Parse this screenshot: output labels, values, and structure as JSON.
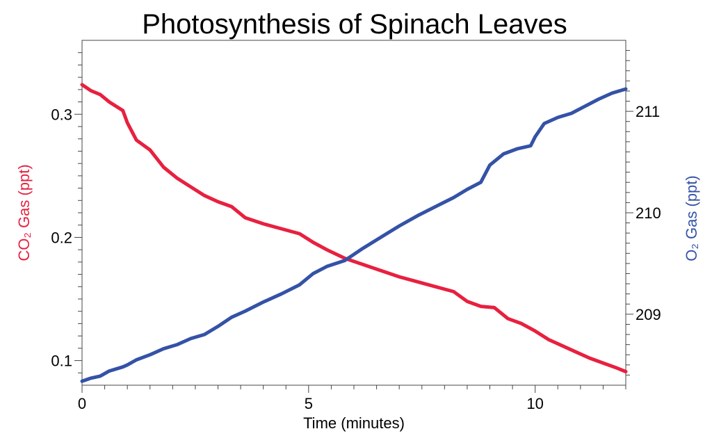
{
  "chart_data": {
    "type": "line",
    "title": "Photosynthesis of Spinach Leaves",
    "xlabel": "Time  (minutes)",
    "ylabel_left": "CO₂ Gas (ppt)",
    "ylabel_right": "O₂ Gas (ppt)",
    "xlim": [
      0,
      12
    ],
    "ylim_left": [
      0.08,
      0.36
    ],
    "ylim_right": [
      208.3,
      211.7
    ],
    "x_ticks": [
      0,
      5,
      10
    ],
    "y_ticks_left": [
      0.1,
      0.2,
      0.3
    ],
    "y_ticks_right": [
      209,
      210,
      211
    ],
    "grid": false,
    "colors": {
      "co2": "#e8203f",
      "o2": "#3452a6"
    },
    "series": [
      {
        "name": "CO₂ Gas",
        "axis": "left",
        "x": [
          0,
          0.2,
          0.4,
          0.6,
          0.9,
          1.0,
          1.2,
          1.5,
          1.8,
          2.1,
          2.4,
          2.7,
          3.0,
          3.3,
          3.6,
          4.0,
          4.4,
          4.8,
          5.1,
          5.4,
          5.8,
          6.2,
          6.6,
          7.0,
          7.4,
          7.8,
          8.2,
          8.5,
          8.8,
          9.1,
          9.4,
          9.7,
          10.0,
          10.3,
          10.6,
          10.9,
          11.2,
          11.5,
          11.8,
          12.0
        ],
        "values": [
          0.324,
          0.319,
          0.316,
          0.31,
          0.303,
          0.293,
          0.279,
          0.271,
          0.257,
          0.248,
          0.241,
          0.234,
          0.229,
          0.225,
          0.216,
          0.211,
          0.207,
          0.203,
          0.196,
          0.19,
          0.183,
          0.178,
          0.173,
          0.168,
          0.164,
          0.16,
          0.156,
          0.148,
          0.144,
          0.143,
          0.134,
          0.13,
          0.124,
          0.117,
          0.112,
          0.107,
          0.102,
          0.098,
          0.094,
          0.091
        ]
      },
      {
        "name": "O₂ Gas",
        "axis": "right",
        "x": [
          0,
          0.2,
          0.4,
          0.6,
          0.9,
          1.0,
          1.2,
          1.5,
          1.8,
          2.1,
          2.4,
          2.7,
          3.0,
          3.3,
          3.6,
          4.0,
          4.4,
          4.8,
          5.1,
          5.4,
          5.8,
          6.2,
          6.6,
          7.0,
          7.4,
          7.8,
          8.2,
          8.5,
          8.8,
          9.0,
          9.3,
          9.6,
          9.9,
          10.0,
          10.2,
          10.5,
          10.8,
          11.1,
          11.4,
          11.7,
          12.0
        ],
        "values": [
          208.34,
          208.37,
          208.39,
          208.44,
          208.48,
          208.5,
          208.55,
          208.6,
          208.66,
          208.7,
          208.76,
          208.8,
          208.88,
          208.97,
          209.03,
          209.12,
          209.2,
          209.29,
          209.4,
          209.47,
          209.53,
          209.65,
          209.76,
          209.87,
          209.97,
          210.06,
          210.15,
          210.23,
          210.3,
          210.47,
          210.58,
          210.63,
          210.66,
          210.75,
          210.88,
          210.94,
          210.98,
          211.05,
          211.12,
          211.18,
          211.22
        ]
      }
    ]
  }
}
